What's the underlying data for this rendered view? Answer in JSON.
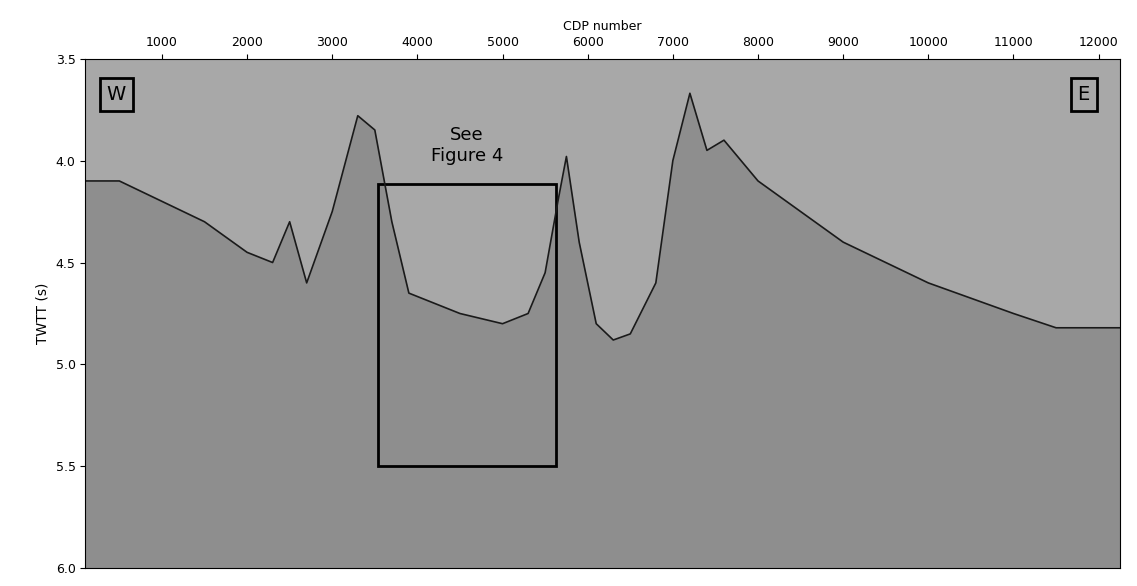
{
  "chart_data": {
    "type": "line",
    "x_label": "CDP number",
    "y_label": "TWTT (s)",
    "annotations": [
      "W",
      "E",
      "See\nFigure 4"
    ],
    "x": [
      100,
      500,
      1000,
      1500,
      2000,
      2300,
      2500,
      2700,
      3000,
      3300,
      3500,
      3700,
      3900,
      4500,
      5000,
      5300,
      5500,
      5650,
      5750,
      5900,
      6100,
      6300,
      6500,
      6800,
      7000,
      7200,
      7400,
      7600,
      8000,
      9000,
      10000,
      11000,
      11500,
      12250
    ],
    "values": [
      4.1,
      4.1,
      4.2,
      4.3,
      4.45,
      4.5,
      4.3,
      4.6,
      4.25,
      3.78,
      3.85,
      4.3,
      4.65,
      4.75,
      4.8,
      4.75,
      4.55,
      4.2,
      3.98,
      4.4,
      4.8,
      4.88,
      4.85,
      4.6,
      4.0,
      3.67,
      3.95,
      3.9,
      4.1,
      4.4,
      4.6,
      4.75,
      4.82,
      4.82
    ],
    "color": "#1a1a1a",
    "xlim": [
      100,
      12250
    ],
    "xticks": [
      1000,
      2000,
      3000,
      4000,
      5000,
      6000,
      7000,
      8000,
      9000,
      10000,
      11000,
      12000
    ],
    "ylim": [
      6.0,
      3.5
    ],
    "yticks": [
      3.5,
      4.0,
      4.5,
      5.0,
      5.5,
      6.0
    ],
    "grid": false
  }
}
